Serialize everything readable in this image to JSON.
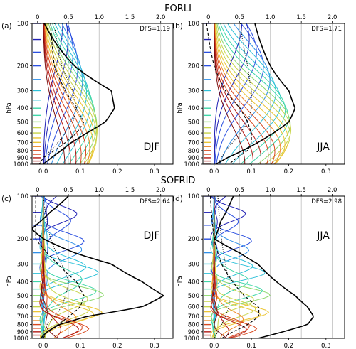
{
  "section_titles": {
    "top": "FORLI",
    "bottom": "SOFRID"
  },
  "chart_data": [
    {
      "type": "line",
      "id": "a",
      "panel_label": "(a)",
      "season": "DJF",
      "dfs": "DFS=1.19",
      "ylabel": "hPa",
      "y_ticks": [
        100,
        200,
        300,
        400,
        500,
        600,
        700,
        800,
        900,
        1000
      ],
      "ylim": [
        1000,
        100
      ],
      "y_scale": "log",
      "x_bottom_ticks": [
        "0.0",
        "0.1",
        "0.2",
        "0.3"
      ],
      "x_bottom_lim": [
        -0.03,
        0.35
      ],
      "x_top_ticks": [
        "0",
        "0.5",
        "1.0",
        "1.5",
        "2.0"
      ],
      "x_top_lim": [
        -0.09,
        2.2
      ],
      "kernel_peak": 0.12,
      "kernel_width": 1.2,
      "dfs_profile": [
        [
          100,
          0.11
        ],
        [
          200,
          0.6
        ],
        [
          300,
          1.2
        ],
        [
          400,
          1.25
        ],
        [
          500,
          1.1
        ],
        [
          600,
          0.8
        ],
        [
          700,
          0.55
        ],
        [
          800,
          0.38
        ],
        [
          900,
          0.22
        ],
        [
          1000,
          0.09
        ]
      ],
      "dashed_profile": [
        [
          100,
          0.02
        ],
        [
          200,
          0.03
        ],
        [
          300,
          0.06
        ],
        [
          400,
          0.09
        ],
        [
          500,
          0.11
        ],
        [
          600,
          0.09
        ],
        [
          700,
          0.06
        ],
        [
          800,
          0.03
        ],
        [
          900,
          0.0
        ],
        [
          1000,
          -0.01
        ]
      ],
      "dotted_profile": [
        [
          100,
          0.03
        ],
        [
          200,
          0.05
        ],
        [
          300,
          0.08
        ],
        [
          400,
          0.09
        ],
        [
          500,
          0.08
        ],
        [
          600,
          0.06
        ],
        [
          700,
          0.04
        ],
        [
          800,
          0.02
        ],
        [
          900,
          0.0
        ],
        [
          1000,
          0.0
        ]
      ]
    },
    {
      "type": "line",
      "id": "b",
      "panel_label": "(b)",
      "season": "JJA",
      "dfs": "DFS=1.71",
      "ylabel": "hPa",
      "y_ticks": [
        100,
        200,
        300,
        400,
        500,
        600,
        700,
        800,
        900,
        1000
      ],
      "ylim": [
        1000,
        100
      ],
      "y_scale": "log",
      "x_bottom_ticks": [
        "0.0",
        "0.1",
        "0.2",
        "0.3"
      ],
      "x_bottom_lim": [
        -0.03,
        0.35
      ],
      "x_top_ticks": [
        "0",
        "0.5",
        "1.0",
        "1.5",
        "2.0"
      ],
      "x_top_lim": [
        -0.09,
        2.2
      ],
      "kernel_peak": 0.17,
      "kernel_width": 1.0,
      "dfs_profile": [
        [
          100,
          0.75
        ],
        [
          200,
          1.0
        ],
        [
          300,
          1.3
        ],
        [
          400,
          1.4
        ],
        [
          500,
          1.3
        ],
        [
          600,
          1.05
        ],
        [
          700,
          0.8
        ],
        [
          800,
          0.55
        ],
        [
          900,
          0.3
        ],
        [
          1000,
          0.12
        ]
      ],
      "dashed_profile": [
        [
          100,
          -0.02
        ],
        [
          200,
          0.0
        ],
        [
          300,
          0.03
        ],
        [
          400,
          0.07
        ],
        [
          500,
          0.09
        ],
        [
          600,
          0.1
        ],
        [
          700,
          0.1
        ],
        [
          800,
          0.09
        ],
        [
          900,
          0.06
        ],
        [
          1000,
          0.04
        ]
      ],
      "dotted_profile": [
        [
          100,
          0.07
        ],
        [
          200,
          0.09
        ],
        [
          300,
          0.1
        ],
        [
          400,
          0.1
        ],
        [
          500,
          0.09
        ],
        [
          600,
          0.07
        ],
        [
          700,
          0.05
        ],
        [
          800,
          0.03
        ],
        [
          900,
          0.02
        ],
        [
          1000,
          0.01
        ]
      ]
    },
    {
      "type": "line",
      "id": "c",
      "panel_label": "(c)",
      "season": "DJF",
      "dfs": "DFS=2.64",
      "ylabel": "hPa",
      "y_ticks": [
        100,
        200,
        300,
        400,
        500,
        600,
        700,
        800,
        900,
        1000
      ],
      "ylim": [
        1000,
        100
      ],
      "y_scale": "log",
      "x_bottom_ticks": [
        "0.0",
        "0.1",
        "0.2",
        "0.3"
      ],
      "x_bottom_lim": [
        -0.03,
        0.35
      ],
      "x_top_ticks": [
        "0",
        "0.5",
        "1.0",
        "1.5",
        "2.0"
      ],
      "x_top_lim": [
        -0.09,
        2.2
      ],
      "kernel_peak": 0.11,
      "kernel_width": 0.6,
      "dfs_profile": [
        [
          100,
          0.5
        ],
        [
          130,
          0.2
        ],
        [
          170,
          -0.1
        ],
        [
          200,
          0.1
        ],
        [
          250,
          0.6
        ],
        [
          300,
          1.2
        ],
        [
          400,
          1.7
        ],
        [
          500,
          2.05
        ],
        [
          600,
          1.7
        ],
        [
          700,
          0.8
        ],
        [
          800,
          0.35
        ],
        [
          900,
          0.15
        ],
        [
          1000,
          0.05
        ]
      ],
      "dashed_profile": [
        [
          100,
          -0.02
        ],
        [
          200,
          -0.02
        ],
        [
          300,
          0.04
        ],
        [
          400,
          0.09
        ],
        [
          500,
          0.11
        ],
        [
          600,
          0.1
        ],
        [
          700,
          0.07
        ],
        [
          800,
          0.04
        ],
        [
          900,
          0.01
        ],
        [
          1000,
          0.0
        ]
      ],
      "dotted_profile": [
        [
          100,
          0.0
        ],
        [
          200,
          0.02
        ],
        [
          300,
          0.05
        ],
        [
          400,
          0.07
        ],
        [
          500,
          0.06
        ],
        [
          600,
          0.05
        ],
        [
          700,
          0.03
        ],
        [
          800,
          0.01
        ],
        [
          900,
          0.0
        ],
        [
          1000,
          0.0
        ]
      ]
    },
    {
      "type": "line",
      "id": "d",
      "panel_label": "(d)",
      "season": "JJA",
      "dfs": "DFS=2.98",
      "ylabel": "hPa",
      "y_ticks": [
        100,
        200,
        300,
        400,
        500,
        600,
        700,
        800,
        900,
        1000
      ],
      "ylim": [
        1000,
        100
      ],
      "y_scale": "log",
      "x_bottom_ticks": [
        "0.0",
        "0.1",
        "0.2",
        "0.3"
      ],
      "x_bottom_lim": [
        -0.03,
        0.35
      ],
      "x_top_ticks": [
        "0",
        "0.5",
        "1.0",
        "1.5",
        "2.0"
      ],
      "x_top_lim": [
        -0.09,
        2.2
      ],
      "kernel_peak": 0.1,
      "kernel_width": 0.5,
      "dfs_profile": [
        [
          100,
          0.4
        ],
        [
          150,
          0.2
        ],
        [
          200,
          0.1
        ],
        [
          250,
          0.5
        ],
        [
          300,
          0.8
        ],
        [
          400,
          1.1
        ],
        [
          500,
          1.4
        ],
        [
          600,
          1.6
        ],
        [
          700,
          1.7
        ],
        [
          800,
          1.6
        ],
        [
          900,
          1.2
        ],
        [
          1000,
          0.8
        ]
      ],
      "dashed_profile": [
        [
          100,
          -0.01
        ],
        [
          200,
          0.0
        ],
        [
          300,
          0.02
        ],
        [
          400,
          0.05
        ],
        [
          500,
          0.08
        ],
        [
          600,
          0.12
        ],
        [
          700,
          0.12
        ],
        [
          800,
          0.09
        ],
        [
          900,
          0.05
        ],
        [
          1000,
          0.02
        ]
      ],
      "dotted_profile": [
        [
          100,
          0.01
        ],
        [
          200,
          0.02
        ],
        [
          300,
          0.03
        ],
        [
          400,
          0.04
        ],
        [
          500,
          0.04
        ],
        [
          600,
          0.04
        ],
        [
          700,
          0.03
        ],
        [
          800,
          0.02
        ],
        [
          900,
          0.01
        ],
        [
          1000,
          0.0
        ]
      ]
    }
  ],
  "palette": [
    "#1f1fb4",
    "#2a4fe0",
    "#2f8fe8",
    "#2cc0d8",
    "#3fd6a8",
    "#8bd86a",
    "#c8d44a",
    "#ebc534",
    "#f08a2a",
    "#d8481e",
    "#b21a16",
    "#7a0f0f"
  ]
}
